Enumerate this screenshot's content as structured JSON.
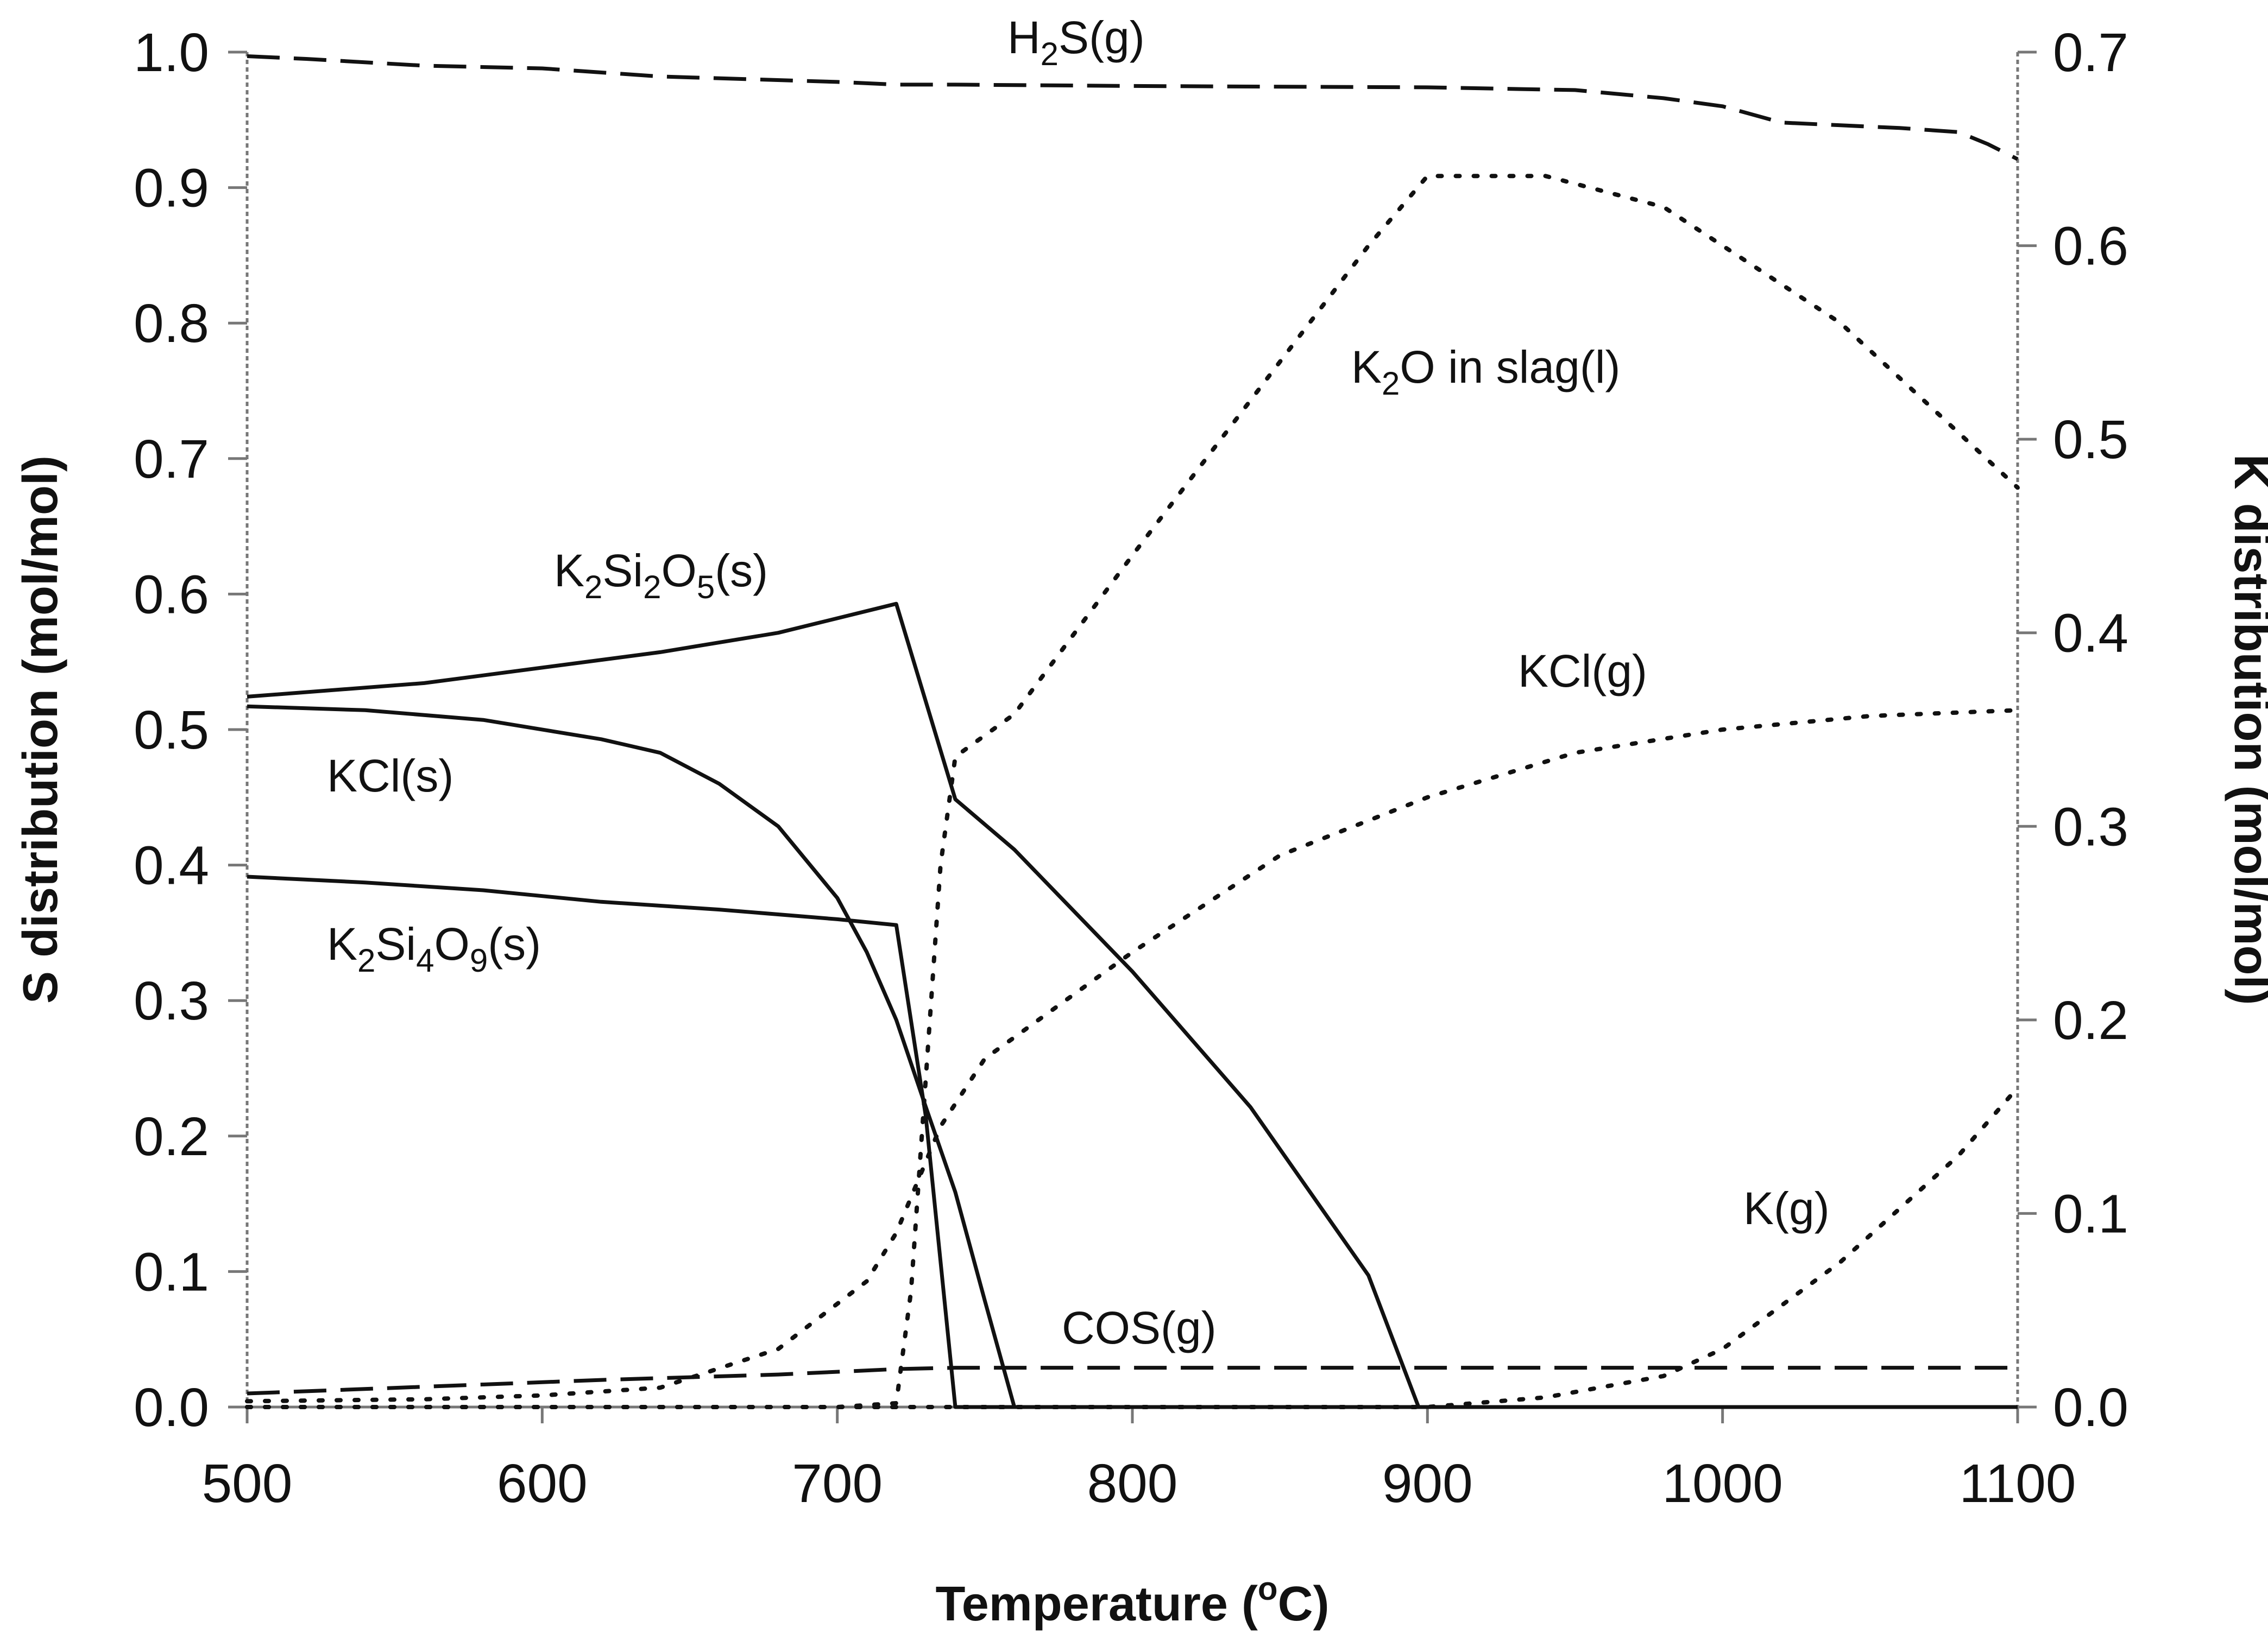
{
  "chart_data": {
    "type": "line",
    "xlabel": "Temperature (°C)",
    "xlabel_parts": [
      "Temperature (",
      "o",
      "C)"
    ],
    "ylabel_left": "S distribution (mol/mol)",
    "ylabel_right": "K distribution (mol/mol)",
    "xlim": [
      500,
      1100
    ],
    "ylim_left": [
      0,
      1.0
    ],
    "ylim_right": [
      0,
      0.7
    ],
    "x_ticks": [
      "500",
      "600",
      "700",
      "800",
      "900",
      "1000",
      "1100"
    ],
    "y_left_ticks": [
      "0.0",
      "0.1",
      "0.2",
      "0.3",
      "0.4",
      "0.5",
      "0.6",
      "0.7",
      "0.8",
      "0.9",
      "1.0"
    ],
    "y_right_ticks": [
      "0.0",
      "0.1",
      "0.2",
      "0.3",
      "0.4",
      "0.5",
      "0.6",
      "0.7"
    ],
    "grid": false,
    "legend": "none",
    "series": [
      {
        "name": "H2S(g)",
        "label_parts": [
          [
            "H",
            false
          ],
          [
            "2",
            true
          ],
          [
            "S(g)",
            false
          ]
        ],
        "axis": "left",
        "style": "dashed",
        "points": [
          [
            500,
            0.997
          ],
          [
            520,
            0.995
          ],
          [
            560,
            0.99
          ],
          [
            600,
            0.988
          ],
          [
            640,
            0.982
          ],
          [
            700,
            0.978
          ],
          [
            720,
            0.976
          ],
          [
            740,
            0.976
          ],
          [
            800,
            0.975
          ],
          [
            900,
            0.974
          ],
          [
            950,
            0.972
          ],
          [
            980,
            0.966
          ],
          [
            1000,
            0.96
          ],
          [
            1020,
            0.948
          ],
          [
            1040,
            0.946
          ],
          [
            1060,
            0.944
          ],
          [
            1080,
            0.941
          ],
          [
            1090,
            0.932
          ],
          [
            1100,
            0.921
          ]
        ]
      },
      {
        "name": "COS(g)",
        "label_parts": [
          [
            "COS(g)",
            false
          ]
        ],
        "axis": "left",
        "style": "dashed",
        "points": [
          [
            500,
            0.01
          ],
          [
            560,
            0.015
          ],
          [
            620,
            0.02
          ],
          [
            680,
            0.024
          ],
          [
            720,
            0.028
          ],
          [
            740,
            0.029
          ],
          [
            800,
            0.029
          ],
          [
            900,
            0.029
          ],
          [
            1000,
            0.029
          ],
          [
            1100,
            0.029
          ]
        ]
      },
      {
        "name": "K2Si2O5(s)",
        "label_parts": [
          [
            "K",
            false
          ],
          [
            "2",
            true
          ],
          [
            "Si",
            false
          ],
          [
            "2",
            true
          ],
          [
            "O",
            false
          ],
          [
            "5",
            true
          ],
          [
            "(s)",
            false
          ]
        ],
        "axis": "right",
        "style": "solid",
        "points": [
          [
            500,
            0.367
          ],
          [
            560,
            0.374
          ],
          [
            600,
            0.382
          ],
          [
            640,
            0.39
          ],
          [
            680,
            0.4
          ],
          [
            720,
            0.415
          ],
          [
            740,
            0.314
          ],
          [
            760,
            0.288
          ],
          [
            800,
            0.225
          ],
          [
            840,
            0.155
          ],
          [
            880,
            0.068
          ],
          [
            897,
            0.0
          ],
          [
            1100,
            0.0
          ]
        ]
      },
      {
        "name": "KCl(s)",
        "label_parts": [
          [
            "KCl(s)",
            false
          ]
        ],
        "axis": "right",
        "style": "solid",
        "points": [
          [
            500,
            0.362
          ],
          [
            540,
            0.36
          ],
          [
            580,
            0.355
          ],
          [
            620,
            0.345
          ],
          [
            640,
            0.338
          ],
          [
            660,
            0.322
          ],
          [
            680,
            0.3
          ],
          [
            700,
            0.263
          ],
          [
            710,
            0.235
          ],
          [
            720,
            0.2
          ],
          [
            730,
            0.155
          ],
          [
            740,
            0.111
          ],
          [
            750,
            0.055
          ],
          [
            760,
            0.0
          ],
          [
            1100,
            0.0
          ]
        ]
      },
      {
        "name": "K2Si4O9(s)",
        "label_parts": [
          [
            "K",
            false
          ],
          [
            "2",
            true
          ],
          [
            "Si",
            false
          ],
          [
            "4",
            true
          ],
          [
            "O",
            false
          ],
          [
            "9",
            true
          ],
          [
            "(s)",
            false
          ]
        ],
        "axis": "right",
        "style": "solid",
        "points": [
          [
            500,
            0.274
          ],
          [
            540,
            0.271
          ],
          [
            580,
            0.267
          ],
          [
            620,
            0.261
          ],
          [
            660,
            0.257
          ],
          [
            700,
            0.252
          ],
          [
            720,
            0.249
          ],
          [
            730,
            0.15
          ],
          [
            740,
            0.0
          ],
          [
            1100,
            0.0
          ]
        ]
      },
      {
        "name": "K2O in slag(l)",
        "label_parts": [
          [
            "K",
            false
          ],
          [
            "2",
            true
          ],
          [
            "O in slag(l)",
            false
          ]
        ],
        "axis": "right",
        "style": "dotted",
        "points": [
          [
            500,
            0.0
          ],
          [
            700,
            0.0
          ],
          [
            720,
            0.002
          ],
          [
            725,
            0.06
          ],
          [
            730,
            0.17
          ],
          [
            735,
            0.28
          ],
          [
            740,
            0.336
          ],
          [
            760,
            0.358
          ],
          [
            800,
            0.44
          ],
          [
            840,
            0.52
          ],
          [
            880,
            0.6
          ],
          [
            900,
            0.636
          ],
          [
            940,
            0.636
          ],
          [
            980,
            0.62
          ],
          [
            1000,
            0.6
          ],
          [
            1040,
            0.56
          ],
          [
            1100,
            0.475
          ]
        ]
      },
      {
        "name": "KCl(g)",
        "label_parts": [
          [
            "KCl(g)",
            false
          ]
        ],
        "axis": "right",
        "style": "dotted",
        "points": [
          [
            500,
            0.003
          ],
          [
            560,
            0.004
          ],
          [
            600,
            0.006
          ],
          [
            640,
            0.01
          ],
          [
            680,
            0.03
          ],
          [
            710,
            0.065
          ],
          [
            720,
            0.09
          ],
          [
            735,
            0.145
          ],
          [
            750,
            0.18
          ],
          [
            800,
            0.235
          ],
          [
            850,
            0.285
          ],
          [
            900,
            0.315
          ],
          [
            950,
            0.338
          ],
          [
            1000,
            0.35
          ],
          [
            1050,
            0.357
          ],
          [
            1100,
            0.36
          ]
        ]
      },
      {
        "name": "K(g)",
        "label_parts": [
          [
            "K(g)",
            false
          ]
        ],
        "axis": "right",
        "style": "dotted",
        "points": [
          [
            500,
            0.0
          ],
          [
            900,
            0.0
          ],
          [
            940,
            0.005
          ],
          [
            980,
            0.016
          ],
          [
            1000,
            0.03
          ],
          [
            1040,
            0.075
          ],
          [
            1080,
            0.13
          ],
          [
            1100,
            0.165
          ]
        ]
      }
    ]
  }
}
